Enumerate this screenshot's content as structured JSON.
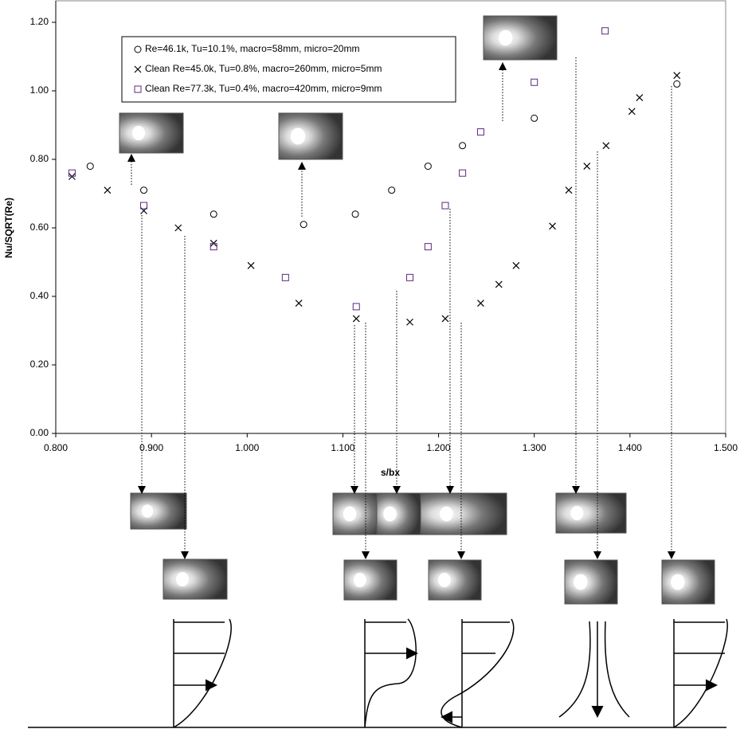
{
  "chart_data": {
    "type": "scatter",
    "xlabel": "s/bx",
    "ylabel": "Nu/SQRT(Re)",
    "xlim": [
      0.8,
      1.5
    ],
    "ylim": [
      0,
      1.2
    ],
    "xticks": [
      {
        "value": 0.8,
        "label": "0.800"
      },
      {
        "value": 0.9,
        "label": "0.900"
      },
      {
        "value": 1.0,
        "label": "1.000"
      },
      {
        "value": 1.1,
        "label": "1.100"
      },
      {
        "value": 1.2,
        "label": "1.200"
      },
      {
        "value": 1.3,
        "label": "1.300"
      },
      {
        "value": 1.4,
        "label": "1.400"
      },
      {
        "value": 1.5,
        "label": "1.500"
      }
    ],
    "yticks": [
      {
        "value": 0,
        "label": "0.00"
      },
      {
        "value": 0.2,
        "label": "0.20"
      },
      {
        "value": 0.4,
        "label": "0.40"
      },
      {
        "value": 0.6,
        "label": "0.60"
      },
      {
        "value": 0.8,
        "label": "0.80"
      },
      {
        "value": 1.0,
        "label": "1.00"
      },
      {
        "value": 1.2,
        "label": "1.20"
      }
    ],
    "series": [
      {
        "name": "Re=46.1k, Tu=10.1%, macro=58mm, micro=20mm",
        "marker": "circle",
        "color": "#000000",
        "x": [
          0.836,
          0.892,
          0.965,
          1.059,
          1.113,
          1.151,
          1.189,
          1.225,
          1.3,
          1.449
        ],
        "values": [
          0.78,
          0.71,
          0.64,
          0.61,
          0.64,
          0.71,
          0.78,
          0.84,
          0.92,
          1.02
        ]
      },
      {
        "name": "Clean Re=45.0k, Tu=0.8%, macro=260mm, micro=5mm",
        "marker": "x",
        "color": "#000000",
        "x": [
          0.817,
          0.854,
          0.892,
          0.928,
          0.965,
          1.004,
          1.054,
          1.114,
          1.17,
          1.207,
          1.244,
          1.263,
          1.281,
          1.319,
          1.336,
          1.355,
          1.375,
          1.402,
          1.41,
          1.449
        ],
        "values": [
          0.75,
          0.71,
          0.65,
          0.6,
          0.555,
          0.49,
          0.38,
          0.335,
          0.325,
          0.335,
          0.38,
          0.435,
          0.49,
          0.605,
          0.71,
          0.78,
          0.84,
          0.94,
          0.98,
          1.045
        ]
      },
      {
        "name": "Clean Re=77.3k, Tu=0.4%, macro=420mm, micro=9mm",
        "marker": "square",
        "color": "#5a2a82",
        "x": [
          0.817,
          0.892,
          0.965,
          1.04,
          1.114,
          1.17,
          1.189,
          1.207,
          1.225,
          1.244,
          1.3,
          1.374
        ],
        "values": [
          0.76,
          0.665,
          0.545,
          0.455,
          0.37,
          0.455,
          0.545,
          0.665,
          0.76,
          0.88,
          1.025,
          1.175
        ]
      }
    ]
  }
}
